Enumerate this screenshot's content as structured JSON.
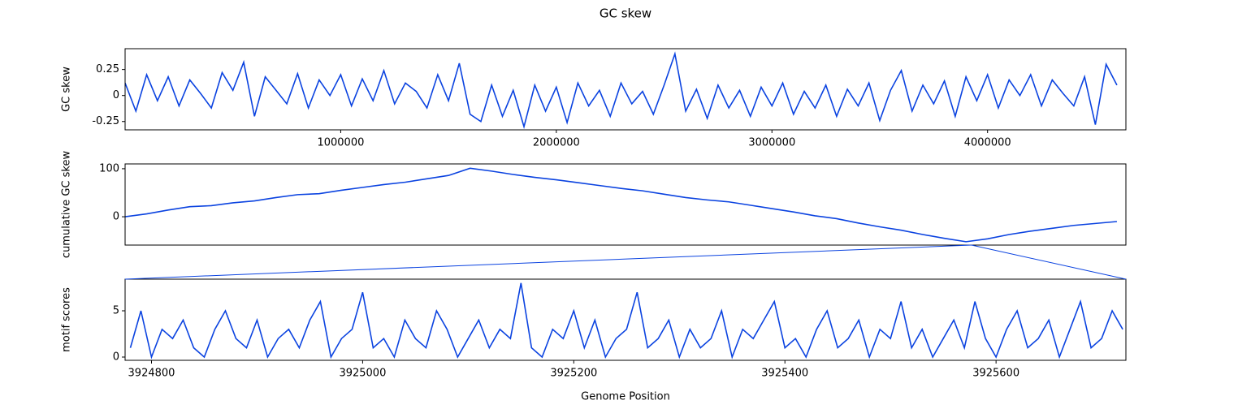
{
  "title": "GC skew",
  "chart_data": [
    {
      "type": "line",
      "ylabel": "GC skew",
      "color": "#0b43e0",
      "xlim": [
        0,
        4641652
      ],
      "ylim": [
        -0.33,
        0.45
      ],
      "xticks": [
        1000000,
        2000000,
        3000000,
        4000000
      ],
      "yticks": [
        -0.25,
        0.0,
        0.25
      ],
      "x": [
        0,
        50000,
        100000,
        150000,
        200000,
        250000,
        300000,
        350000,
        400000,
        450000,
        500000,
        550000,
        600000,
        650000,
        700000,
        750000,
        800000,
        850000,
        900000,
        950000,
        1000000,
        1050000,
        1100000,
        1150000,
        1200000,
        1250000,
        1300000,
        1350000,
        1400000,
        1450000,
        1500000,
        1550000,
        1600000,
        1650000,
        1700000,
        1750000,
        1800000,
        1850000,
        1900000,
        1950000,
        2000000,
        2050000,
        2100000,
        2150000,
        2200000,
        2250000,
        2300000,
        2350000,
        2400000,
        2450000,
        2500000,
        2550000,
        2600000,
        2650000,
        2700000,
        2750000,
        2800000,
        2850000,
        2900000,
        2950000,
        3000000,
        3050000,
        3100000,
        3150000,
        3200000,
        3250000,
        3300000,
        3350000,
        3400000,
        3450000,
        3500000,
        3550000,
        3600000,
        3650000,
        3700000,
        3750000,
        3800000,
        3850000,
        3900000,
        3950000,
        4000000,
        4050000,
        4100000,
        4150000,
        4200000,
        4250000,
        4300000,
        4350000,
        4400000,
        4450000,
        4500000,
        4550000,
        4600000
      ],
      "values": [
        0.12,
        -0.15,
        0.2,
        -0.05,
        0.18,
        -0.1,
        0.15,
        0.02,
        -0.12,
        0.22,
        0.05,
        0.32,
        -0.2,
        0.18,
        0.05,
        -0.08,
        0.21,
        -0.12,
        0.15,
        0.0,
        0.2,
        -0.1,
        0.16,
        -0.05,
        0.24,
        -0.08,
        0.12,
        0.04,
        -0.12,
        0.2,
        -0.05,
        0.31,
        -0.18,
        -0.25,
        0.1,
        -0.2,
        0.05,
        -0.3,
        0.1,
        -0.15,
        0.08,
        -0.26,
        0.12,
        -0.1,
        0.05,
        -0.2,
        0.12,
        -0.08,
        0.04,
        -0.18,
        0.1,
        0.4,
        -0.15,
        0.06,
        -0.22,
        0.1,
        -0.12,
        0.05,
        -0.2,
        0.08,
        -0.1,
        0.12,
        -0.18,
        0.04,
        -0.12,
        0.1,
        -0.2,
        0.06,
        -0.1,
        0.12,
        -0.24,
        0.05,
        0.24,
        -0.15,
        0.1,
        -0.08,
        0.14,
        -0.2,
        0.18,
        -0.05,
        0.2,
        -0.12,
        0.15,
        0.0,
        0.2,
        -0.1,
        0.15,
        0.02,
        -0.1,
        0.18,
        -0.28,
        0.3,
        0.1
      ]
    },
    {
      "type": "line",
      "ylabel": "cumulative GC skew",
      "color": "#0b43e0",
      "xlim": [
        0,
        4641652
      ],
      "ylim": [
        -59,
        110
      ],
      "yticks": [
        0,
        100
      ],
      "x": [
        0,
        100000,
        200000,
        300000,
        400000,
        500000,
        600000,
        700000,
        800000,
        900000,
        1000000,
        1100000,
        1200000,
        1300000,
        1400000,
        1500000,
        1600000,
        1700000,
        1800000,
        1900000,
        2000000,
        2100000,
        2200000,
        2300000,
        2400000,
        2500000,
        2600000,
        2700000,
        2800000,
        2900000,
        3000000,
        3100000,
        3200000,
        3300000,
        3400000,
        3500000,
        3600000,
        3700000,
        3800000,
        3900000,
        4000000,
        4100000,
        4200000,
        4300000,
        4400000,
        4500000,
        4600000
      ],
      "values": [
        0,
        6,
        14,
        21,
        23,
        29,
        33,
        40,
        46,
        48,
        55,
        61,
        67,
        72,
        79,
        86,
        101,
        95,
        88,
        82,
        77,
        71,
        65,
        59,
        54,
        47,
        40,
        35,
        31,
        24,
        17,
        10,
        2,
        -4,
        -13,
        -21,
        -28,
        -37,
        -45,
        -52,
        -46,
        -37,
        -30,
        -24,
        -18,
        -14,
        -10
      ]
    },
    {
      "type": "line",
      "ylabel": "motif scores",
      "xlabel": "Genome Position",
      "color": "#0b43e0",
      "xlim": [
        3924775,
        3925723
      ],
      "ylim": [
        -0.35,
        8.42
      ],
      "xticks": [
        3924800,
        3925000,
        3925200,
        3925400,
        3925600
      ],
      "yticks": [
        0,
        5
      ],
      "x": [
        3924780,
        3924790,
        3924800,
        3924810,
        3924820,
        3924830,
        3924840,
        3924850,
        3924860,
        3924870,
        3924880,
        3924890,
        3924900,
        3924910,
        3924920,
        3924930,
        3924940,
        3924950,
        3924960,
        3924970,
        3924980,
        3924990,
        3925000,
        3925010,
        3925020,
        3925030,
        3925040,
        3925050,
        3925060,
        3925070,
        3925080,
        3925090,
        3925100,
        3925110,
        3925120,
        3925130,
        3925140,
        3925150,
        3925160,
        3925170,
        3925180,
        3925190,
        3925200,
        3925210,
        3925220,
        3925230,
        3925240,
        3925250,
        3925260,
        3925270,
        3925280,
        3925290,
        3925300,
        3925310,
        3925320,
        3925330,
        3925340,
        3925350,
        3925360,
        3925370,
        3925380,
        3925390,
        3925400,
        3925410,
        3925420,
        3925430,
        3925440,
        3925450,
        3925460,
        3925470,
        3925480,
        3925490,
        3925500,
        3925510,
        3925520,
        3925530,
        3925540,
        3925550,
        3925560,
        3925570,
        3925580,
        3925590,
        3925600,
        3925610,
        3925620,
        3925630,
        3925640,
        3925650,
        3925660,
        3925670,
        3925680,
        3925690,
        3925700,
        3925710,
        3925720
      ],
      "values": [
        1,
        5,
        0,
        3,
        2,
        4,
        1,
        0,
        3,
        5,
        2,
        1,
        4,
        0,
        2,
        3,
        1,
        4,
        6,
        0,
        2,
        3,
        7,
        1,
        2,
        0,
        4,
        2,
        1,
        5,
        3,
        0,
        2,
        4,
        1,
        3,
        2,
        8,
        1,
        0,
        3,
        2,
        5,
        1,
        4,
        0,
        2,
        3,
        7,
        1,
        2,
        4,
        0,
        3,
        1,
        2,
        5,
        0,
        3,
        2,
        4,
        6,
        1,
        2,
        0,
        3,
        5,
        1,
        2,
        4,
        0,
        3,
        2,
        6,
        1,
        3,
        0,
        2,
        4,
        1,
        6,
        2,
        0,
        3,
        5,
        1,
        2,
        4,
        0,
        3,
        6,
        1,
        2,
        5,
        3
      ]
    }
  ]
}
